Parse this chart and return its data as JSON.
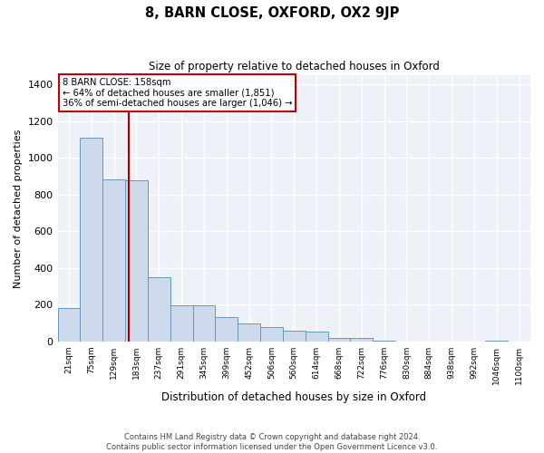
{
  "title": "8, BARN CLOSE, OXFORD, OX2 9JP",
  "subtitle": "Size of property relative to detached houses in Oxford",
  "xlabel": "Distribution of detached houses by size in Oxford",
  "ylabel": "Number of detached properties",
  "bar_color": "#ccdaeb",
  "bar_edge_color": "#6699bb",
  "background_color": "#eef2f8",
  "grid_color": "#ffffff",
  "categories": [
    "21sqm",
    "75sqm",
    "129sqm",
    "183sqm",
    "237sqm",
    "291sqm",
    "345sqm",
    "399sqm",
    "452sqm",
    "506sqm",
    "560sqm",
    "614sqm",
    "668sqm",
    "722sqm",
    "776sqm",
    "830sqm",
    "884sqm",
    "938sqm",
    "992sqm",
    "1046sqm",
    "1100sqm"
  ],
  "values": [
    180,
    1110,
    880,
    875,
    350,
    195,
    195,
    130,
    95,
    75,
    60,
    55,
    20,
    20,
    5,
    0,
    0,
    0,
    0,
    5,
    0
  ],
  "ylim": [
    0,
    1450
  ],
  "yticks": [
    0,
    200,
    400,
    600,
    800,
    1000,
    1200,
    1400
  ],
  "property_line_x": 2.67,
  "annotation_text": "8 BARN CLOSE: 158sqm\n← 64% of detached houses are smaller (1,851)\n36% of semi-detached houses are larger (1,046) →",
  "footer_line1": "Contains HM Land Registry data © Crown copyright and database right 2024.",
  "footer_line2": "Contains public sector information licensed under the Open Government Licence v3.0."
}
